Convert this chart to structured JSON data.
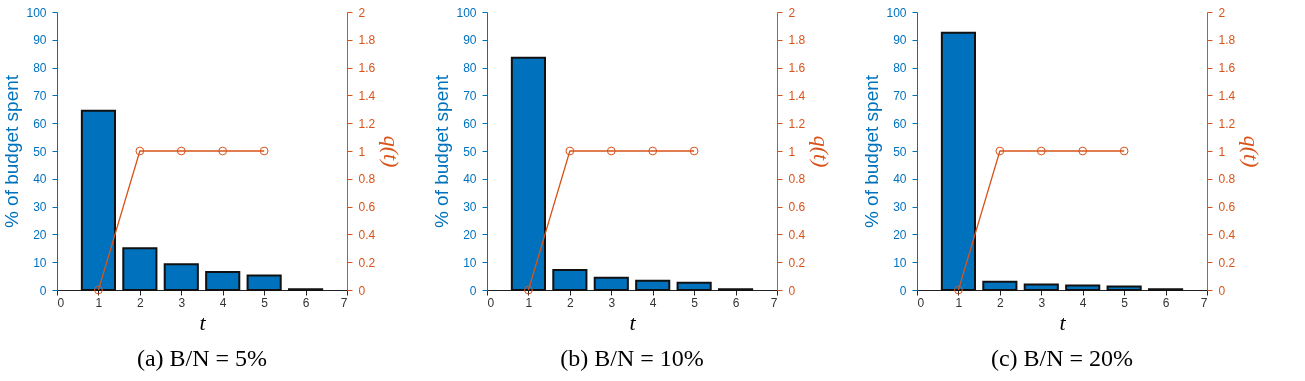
{
  "chart_data": [
    {
      "type": "bar",
      "title": "(a) B/N = 5%",
      "xlabel": "t",
      "ylabel": "% of budget spent",
      "y2label": "q(t)",
      "x": [
        1,
        2,
        3,
        4,
        5,
        6
      ],
      "xlim": [
        0,
        7
      ],
      "xticks": [
        0,
        1,
        2,
        3,
        4,
        5,
        6,
        7
      ],
      "ylim": [
        0,
        100
      ],
      "yticks": [
        0,
        10,
        20,
        30,
        40,
        50,
        60,
        70,
        80,
        90,
        100
      ],
      "y2lim": [
        0,
        2
      ],
      "y2ticks": [
        0,
        0.2,
        0.4,
        0.6,
        0.8,
        1,
        1.2,
        1.4,
        1.6,
        1.8,
        2
      ],
      "series": [
        {
          "color": "#0072bd",
          "values": [
            64.5,
            15,
            9.3,
            6.5,
            5.2,
            0.3
          ]
        },
        {
          "type": "line",
          "axis": "y2",
          "color": "#d95319",
          "marker": "circle",
          "x": [
            1,
            2,
            3,
            4,
            5
          ],
          "values": [
            0,
            1,
            1,
            1,
            1
          ]
        }
      ]
    },
    {
      "type": "bar",
      "title": "(b) B/N = 10%",
      "xlabel": "t",
      "ylabel": "% of budget spent",
      "y2label": "q(t)",
      "x": [
        1,
        2,
        3,
        4,
        5,
        6
      ],
      "xlim": [
        0,
        7
      ],
      "xticks": [
        0,
        1,
        2,
        3,
        4,
        5,
        6,
        7
      ],
      "ylim": [
        0,
        100
      ],
      "yticks": [
        0,
        10,
        20,
        30,
        40,
        50,
        60,
        70,
        80,
        90,
        100
      ],
      "y2lim": [
        0,
        2
      ],
      "y2ticks": [
        0,
        0.2,
        0.4,
        0.6,
        0.8,
        1,
        1.2,
        1.4,
        1.6,
        1.8,
        2
      ],
      "series": [
        {
          "color": "#0072bd",
          "values": [
            83.5,
            7.2,
            4.4,
            3.3,
            2.6,
            0.3
          ]
        },
        {
          "type": "line",
          "axis": "y2",
          "color": "#d95319",
          "marker": "circle",
          "x": [
            1,
            2,
            3,
            4,
            5
          ],
          "values": [
            0,
            1,
            1,
            1,
            1
          ]
        }
      ]
    },
    {
      "type": "bar",
      "title": "(c) B/N = 20%",
      "xlabel": "t",
      "ylabel": "% of budget spent",
      "y2label": "q(t)",
      "x": [
        1,
        2,
        3,
        4,
        5,
        6
      ],
      "xlim": [
        0,
        7
      ],
      "xticks": [
        0,
        1,
        2,
        3,
        4,
        5,
        6,
        7
      ],
      "ylim": [
        0,
        100
      ],
      "yticks": [
        0,
        10,
        20,
        30,
        40,
        50,
        60,
        70,
        80,
        90,
        100
      ],
      "y2lim": [
        0,
        2
      ],
      "y2ticks": [
        0,
        0.2,
        0.4,
        0.6,
        0.8,
        1,
        1.2,
        1.4,
        1.6,
        1.8,
        2
      ],
      "series": [
        {
          "color": "#0072bd",
          "values": [
            92.5,
            3.0,
            2.0,
            1.6,
            1.3,
            0.3
          ]
        },
        {
          "type": "line",
          "axis": "y2",
          "color": "#d95319",
          "marker": "circle",
          "x": [
            1,
            2,
            3,
            4,
            5
          ],
          "values": [
            0,
            1,
            1,
            1,
            1
          ]
        }
      ]
    }
  ]
}
